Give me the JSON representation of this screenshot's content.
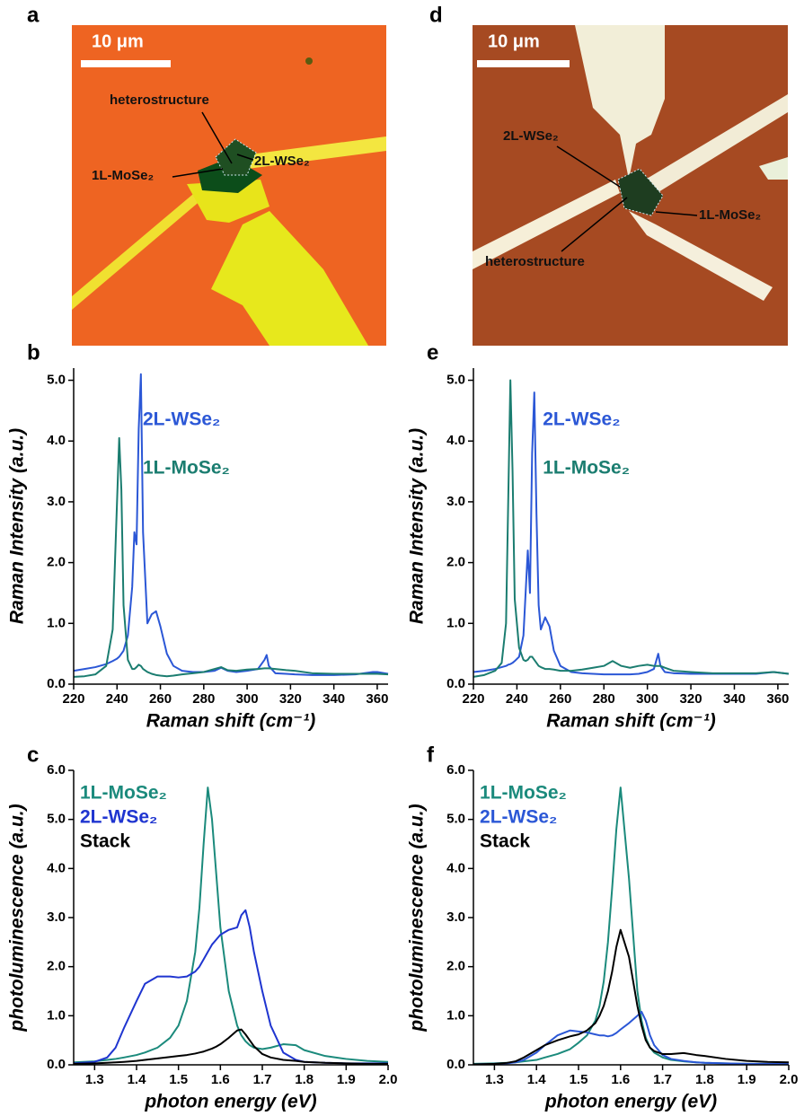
{
  "images": [
    {
      "panel": "a",
      "scale_bar": "10 μm",
      "labels": [
        "heterostructure",
        "1L-MoSe₂",
        "2L-WSe₂"
      ]
    },
    {
      "panel": "d",
      "scale_bar": "10 μm",
      "labels": [
        "2L-WSe₂",
        "1L-MoSe₂",
        "heterostructure"
      ]
    }
  ],
  "chart_data": [
    {
      "type": "line",
      "panel": "b",
      "xlabel": "Raman shift (cm⁻¹)",
      "ylabel": "Raman Intensity (a.u.)",
      "legend": "upper-center",
      "xlim": [
        220,
        365
      ],
      "ylim": [
        0,
        5.2
      ],
      "xticks": [
        220,
        240,
        260,
        280,
        300,
        320,
        340,
        360
      ],
      "yticks": [
        {
          "value": 0,
          "label": "0.0"
        },
        {
          "value": 1,
          "label": "1.0"
        },
        {
          "value": 2,
          "label": "2.0"
        },
        {
          "value": 3,
          "label": "3.0"
        },
        {
          "value": 4,
          "label": "4.0"
        },
        {
          "value": 5,
          "label": "5.0"
        }
      ],
      "x": [
        220,
        225,
        230,
        235,
        238,
        240,
        241,
        242,
        243,
        245,
        247,
        248,
        249,
        250,
        251,
        252,
        254,
        256,
        258,
        260,
        263,
        266,
        270,
        275,
        280,
        285,
        288,
        291,
        295,
        300,
        305,
        308,
        309,
        310,
        313,
        318,
        322,
        330,
        340,
        350,
        358,
        360,
        365
      ],
      "series": [
        {
          "name": "2L-WSe₂",
          "color": "#2b57d6",
          "values": [
            0.22,
            0.25,
            0.28,
            0.33,
            0.38,
            0.42,
            0.45,
            0.5,
            0.55,
            0.8,
            1.6,
            2.5,
            2.3,
            4.2,
            5.1,
            2.5,
            1.0,
            1.15,
            1.2,
            0.95,
            0.5,
            0.3,
            0.22,
            0.2,
            0.2,
            0.22,
            0.27,
            0.22,
            0.2,
            0.22,
            0.25,
            0.4,
            0.48,
            0.3,
            0.18,
            0.17,
            0.16,
            0.15,
            0.15,
            0.16,
            0.2,
            0.2,
            0.17
          ]
        },
        {
          "name": "1L-MoSe₂",
          "color": "#1b7d70",
          "values": [
            0.12,
            0.13,
            0.16,
            0.3,
            0.9,
            3.0,
            4.05,
            3.2,
            1.3,
            0.4,
            0.25,
            0.25,
            0.28,
            0.32,
            0.3,
            0.25,
            0.2,
            0.17,
            0.15,
            0.14,
            0.13,
            0.14,
            0.16,
            0.18,
            0.2,
            0.25,
            0.28,
            0.23,
            0.22,
            0.24,
            0.25,
            0.26,
            0.26,
            0.26,
            0.25,
            0.23,
            0.22,
            0.18,
            0.17,
            0.17,
            0.17,
            0.17,
            0.16
          ]
        }
      ]
    },
    {
      "type": "line",
      "panel": "e",
      "xlabel": "Raman shift (cm⁻¹)",
      "ylabel": "Raman Intensity (a.u.)",
      "legend": "upper-center",
      "xlim": [
        220,
        365
      ],
      "ylim": [
        0,
        5.2
      ],
      "xticks": [
        220,
        240,
        260,
        280,
        300,
        320,
        340,
        360
      ],
      "yticks": [
        {
          "value": 0,
          "label": "0.0"
        },
        {
          "value": 1,
          "label": "1.0"
        },
        {
          "value": 2,
          "label": "2.0"
        },
        {
          "value": 3,
          "label": "3.0"
        },
        {
          "value": 4,
          "label": "4.0"
        },
        {
          "value": 5,
          "label": "5.0"
        }
      ],
      "x": [
        220,
        225,
        230,
        233,
        235,
        236,
        237,
        238,
        239,
        241,
        243,
        244,
        245,
        246,
        247,
        248,
        249,
        250,
        251,
        253,
        255,
        257,
        260,
        265,
        270,
        275,
        280,
        284,
        288,
        292,
        296,
        300,
        303,
        305,
        306,
        308,
        312,
        320,
        330,
        340,
        350,
        358,
        365
      ],
      "series": [
        {
          "name": "2L-WSe₂",
          "color": "#2b57d6",
          "values": [
            0.2,
            0.22,
            0.25,
            0.28,
            0.3,
            0.32,
            0.33,
            0.35,
            0.38,
            0.45,
            0.8,
            1.5,
            2.2,
            1.5,
            3.8,
            4.8,
            2.8,
            1.3,
            0.9,
            1.1,
            0.95,
            0.55,
            0.3,
            0.2,
            0.18,
            0.17,
            0.16,
            0.16,
            0.16,
            0.16,
            0.17,
            0.2,
            0.25,
            0.5,
            0.3,
            0.2,
            0.18,
            0.17,
            0.17,
            0.17,
            0.17,
            0.2,
            0.17
          ]
        },
        {
          "name": "1L-MoSe₂",
          "color": "#1b7d70",
          "values": [
            0.12,
            0.15,
            0.22,
            0.35,
            1.0,
            3.0,
            5.0,
            3.5,
            1.4,
            0.6,
            0.4,
            0.38,
            0.4,
            0.45,
            0.45,
            0.4,
            0.35,
            0.3,
            0.28,
            0.25,
            0.25,
            0.24,
            0.22,
            0.22,
            0.24,
            0.27,
            0.3,
            0.38,
            0.3,
            0.27,
            0.3,
            0.32,
            0.3,
            0.3,
            0.3,
            0.27,
            0.22,
            0.2,
            0.18,
            0.18,
            0.18,
            0.2,
            0.17
          ]
        }
      ]
    },
    {
      "type": "line",
      "panel": "c",
      "xlabel": "photon energy (eV)",
      "ylabel": "photoluminescence (a.u.)",
      "legend": "upper-left",
      "xlim": [
        1.25,
        2.0
      ],
      "ylim": [
        0,
        6
      ],
      "xticks": [
        1.3,
        1.4,
        1.5,
        1.6,
        1.7,
        1.8,
        1.9,
        {
          "value": 2,
          "label": "2.0"
        }
      ],
      "yticks": [
        {
          "value": 0,
          "label": "0.0"
        },
        {
          "value": 1,
          "label": "1.0"
        },
        {
          "value": 2,
          "label": "2.0"
        },
        {
          "value": 3,
          "label": "3.0"
        },
        {
          "value": 4,
          "label": "4.0"
        },
        {
          "value": 5,
          "label": "5.0"
        },
        {
          "value": 6,
          "label": "6.0"
        }
      ],
      "x": [
        1.25,
        1.3,
        1.33,
        1.35,
        1.37,
        1.4,
        1.42,
        1.45,
        1.48,
        1.5,
        1.52,
        1.54,
        1.55,
        1.56,
        1.57,
        1.58,
        1.59,
        1.6,
        1.62,
        1.64,
        1.65,
        1.66,
        1.67,
        1.68,
        1.7,
        1.72,
        1.75,
        1.78,
        1.8,
        1.85,
        1.9,
        1.95,
        2.0
      ],
      "series": [
        {
          "name": "1L-MoSe₂",
          "color": "#1b8a7c",
          "values": [
            0.05,
            0.07,
            0.1,
            0.12,
            0.15,
            0.2,
            0.25,
            0.35,
            0.55,
            0.8,
            1.3,
            2.3,
            3.2,
            4.5,
            5.65,
            5.0,
            3.9,
            2.8,
            1.5,
            0.8,
            0.6,
            0.48,
            0.4,
            0.35,
            0.32,
            0.35,
            0.42,
            0.4,
            0.3,
            0.18,
            0.12,
            0.08,
            0.06
          ]
        },
        {
          "name": "2L-WSe₂",
          "color": "#1f35d0",
          "values": [
            0.03,
            0.06,
            0.15,
            0.35,
            0.75,
            1.3,
            1.65,
            1.8,
            1.8,
            1.78,
            1.8,
            1.9,
            2.0,
            2.15,
            2.3,
            2.45,
            2.55,
            2.65,
            2.75,
            2.8,
            3.05,
            3.15,
            2.8,
            2.3,
            1.5,
            0.8,
            0.25,
            0.1,
            0.06,
            0.04,
            0.03,
            0.03,
            0.03
          ]
        },
        {
          "name": "Stack",
          "color": "#000000",
          "values": [
            0.02,
            0.03,
            0.04,
            0.05,
            0.06,
            0.08,
            0.1,
            0.13,
            0.16,
            0.18,
            0.2,
            0.23,
            0.25,
            0.27,
            0.3,
            0.33,
            0.37,
            0.42,
            0.55,
            0.7,
            0.72,
            0.62,
            0.5,
            0.38,
            0.22,
            0.15,
            0.1,
            0.08,
            0.06,
            0.04,
            0.03,
            0.02,
            0.02
          ]
        }
      ]
    },
    {
      "type": "line",
      "panel": "f",
      "xlabel": "photon energy (eV)",
      "ylabel": "photoluminescence (a.u.)",
      "legend": "upper-left",
      "xlim": [
        1.25,
        2.0
      ],
      "ylim": [
        0,
        6
      ],
      "xticks": [
        1.3,
        1.4,
        1.5,
        1.6,
        1.7,
        1.8,
        1.9,
        {
          "value": 2,
          "label": "2.0"
        }
      ],
      "yticks": [
        {
          "value": 0,
          "label": "0.0"
        },
        {
          "value": 1,
          "label": "1.0"
        },
        {
          "value": 2,
          "label": "2.0"
        },
        {
          "value": 3,
          "label": "3.0"
        },
        {
          "value": 4,
          "label": "4.0"
        },
        {
          "value": 5,
          "label": "5.0"
        },
        {
          "value": 6,
          "label": "6.0"
        }
      ],
      "x": [
        1.25,
        1.3,
        1.33,
        1.35,
        1.37,
        1.4,
        1.42,
        1.45,
        1.48,
        1.5,
        1.52,
        1.54,
        1.55,
        1.56,
        1.57,
        1.58,
        1.59,
        1.6,
        1.62,
        1.64,
        1.65,
        1.66,
        1.67,
        1.68,
        1.7,
        1.72,
        1.75,
        1.78,
        1.8,
        1.85,
        1.9,
        1.95,
        2.0
      ],
      "series": [
        {
          "name": "1L-MoSe₂",
          "color": "#1b8a7c",
          "values": [
            0.02,
            0.03,
            0.04,
            0.05,
            0.07,
            0.1,
            0.15,
            0.22,
            0.32,
            0.45,
            0.6,
            0.9,
            1.2,
            1.7,
            2.5,
            3.6,
            4.8,
            5.65,
            3.8,
            1.5,
            0.9,
            0.55,
            0.35,
            0.25,
            0.15,
            0.1,
            0.07,
            0.05,
            0.04,
            0.03,
            0.02,
            0.02,
            0.02
          ]
        },
        {
          "name": "2L-WSe₂",
          "color": "#2b57d6",
          "values": [
            0.01,
            0.02,
            0.03,
            0.05,
            0.1,
            0.25,
            0.4,
            0.6,
            0.7,
            0.68,
            0.66,
            0.62,
            0.6,
            0.6,
            0.58,
            0.6,
            0.65,
            0.72,
            0.85,
            1.0,
            1.08,
            0.9,
            0.6,
            0.4,
            0.2,
            0.12,
            0.08,
            0.05,
            0.04,
            0.03,
            0.02,
            0.02,
            0.02
          ]
        },
        {
          "name": "Stack",
          "color": "#000000",
          "values": [
            0.01,
            0.02,
            0.04,
            0.07,
            0.15,
            0.3,
            0.4,
            0.5,
            0.58,
            0.62,
            0.7,
            0.85,
            1.0,
            1.2,
            1.5,
            1.9,
            2.4,
            2.75,
            2.2,
            1.2,
            0.8,
            0.5,
            0.35,
            0.28,
            0.22,
            0.22,
            0.24,
            0.2,
            0.18,
            0.12,
            0.08,
            0.06,
            0.05
          ]
        }
      ]
    }
  ]
}
